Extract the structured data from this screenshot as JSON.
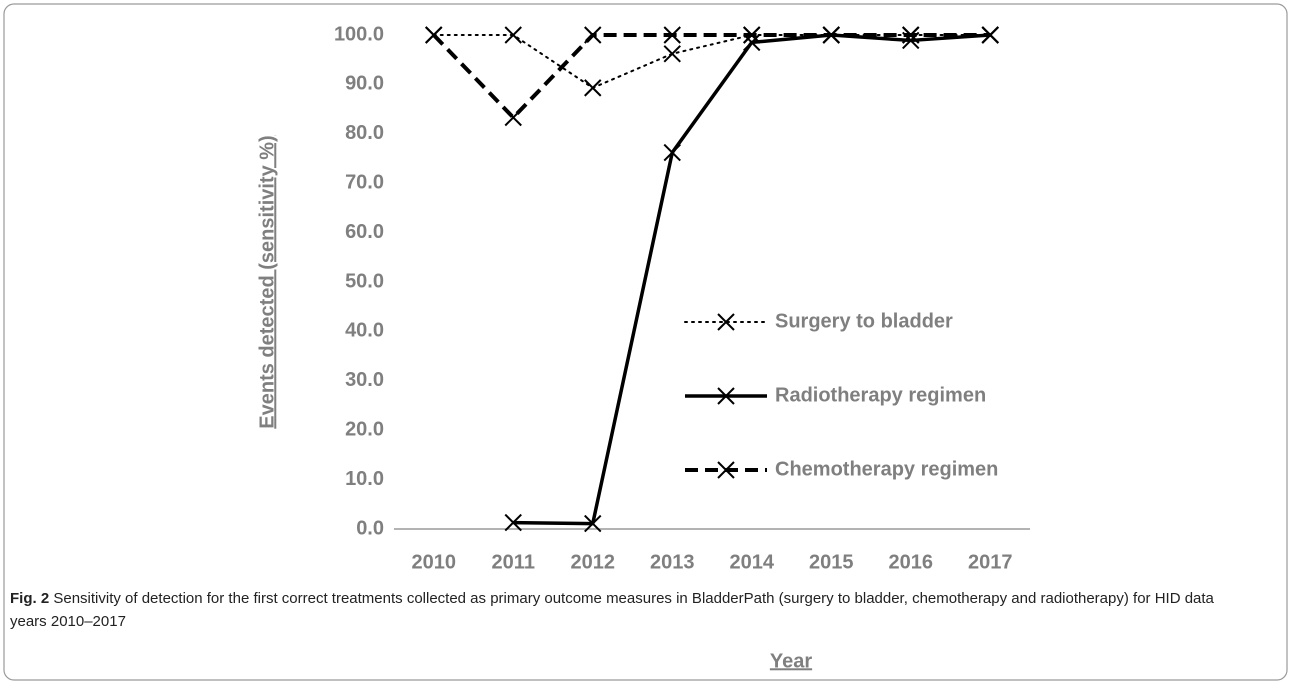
{
  "chart_data": {
    "type": "line",
    "categories": [
      "2010",
      "2011",
      "2012",
      "2013",
      "2014",
      "2015",
      "2016",
      "2017"
    ],
    "series": [
      {
        "name": "Surgery to bladder",
        "color": "#000000",
        "style": "dotted",
        "values": [
          100,
          100,
          89.3,
          96.2,
          100,
          100,
          100,
          100
        ]
      },
      {
        "name": "Radiotherapy regimen",
        "color": "#000000",
        "style": "solid",
        "values": [
          null,
          1.3,
          1.1,
          76.2,
          98.5,
          100,
          98.9,
          100
        ]
      },
      {
        "name": "Chemotherapy regimen",
        "color": "#000000",
        "style": "dashed",
        "values": [
          100,
          83.3,
          100,
          100,
          100,
          100,
          100,
          100
        ]
      }
    ],
    "ylabel": "Events detected (sensitivity %)",
    "xlabel": "Year",
    "ylim": [
      0,
      100
    ],
    "yticks": [
      {
        "value": 0,
        "label": "0.0"
      },
      {
        "value": 10,
        "label": "10.0"
      },
      {
        "value": 20,
        "label": "20.0"
      },
      {
        "value": 30,
        "label": "30.0"
      },
      {
        "value": 40,
        "label": "40.0"
      },
      {
        "value": 50,
        "label": "50.0"
      },
      {
        "value": 60,
        "label": "60.0"
      },
      {
        "value": 70,
        "label": "70.0"
      },
      {
        "value": 80,
        "label": "80.0"
      },
      {
        "value": 90,
        "label": "90.0"
      },
      {
        "value": 100,
        "label": "100.0"
      }
    ],
    "grid": false,
    "legend": "right",
    "caption": {
      "label": "Fig. 2",
      "text": "Sensitivity of detection for the first correct treatments collected as primary outcome measures in BladderPath (surgery to bladder, chemotherapy and radiotherapy) for HID data years 2010–2017"
    }
  }
}
